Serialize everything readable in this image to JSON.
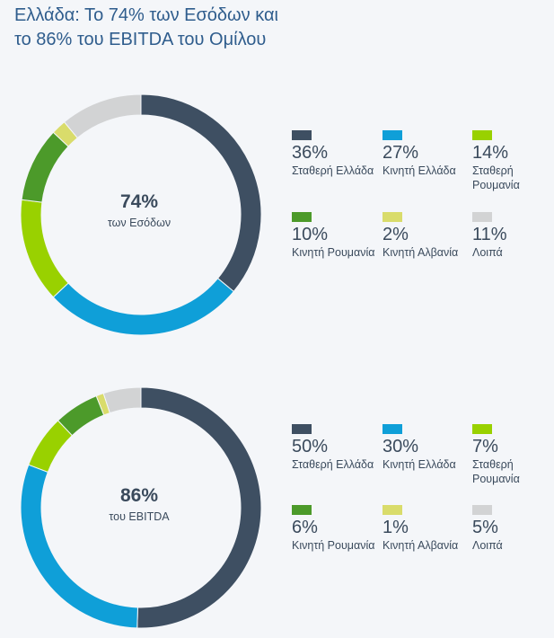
{
  "header": {
    "title_line1": "Ελλάδα: Το 74% των Εσόδων και",
    "title_line2": "το 86% του EBITDA του Ομίλου"
  },
  "colors": {
    "fixed_greece": "#3e4f62",
    "mobile_greece": "#0f9fd8",
    "fixed_romania": "#99d100",
    "mobile_romania": "#4c9a2a",
    "mobile_albania": "#d9dc6b",
    "other": "#d2d3d4"
  },
  "panels": [
    {
      "center_value": "74%",
      "center_label": "των Εσόδων",
      "legend": [
        {
          "value": "36%",
          "label": "Σταθερή Ελλάδα",
          "color": "#3e4f62"
        },
        {
          "value": "27%",
          "label": "Κινητή Ελλάδα",
          "color": "#0f9fd8"
        },
        {
          "value": "14%",
          "label": "Σταθερή Ρουμανία",
          "color": "#99d100"
        },
        {
          "value": "10%",
          "label": "Κινητή Ρουμανία",
          "color": "#4c9a2a"
        },
        {
          "value": "2%",
          "label": "Κινητή Αλβανία",
          "color": "#d9dc6b"
        },
        {
          "value": "11%",
          "label": "Λοιπά",
          "color": "#d2d3d4"
        }
      ]
    },
    {
      "center_value": "86%",
      "center_label": "του EBITDA",
      "legend": [
        {
          "value": "50%",
          "label": "Σταθερή Ελλάδα",
          "color": "#3e4f62"
        },
        {
          "value": "30%",
          "label": "Κινητή Ελλάδα",
          "color": "#0f9fd8"
        },
        {
          "value": "7%",
          "label": "Σταθερή Ρουμανία",
          "color": "#99d100"
        },
        {
          "value": "6%",
          "label": "Κινητή Ρουμανία",
          "color": "#4c9a2a"
        },
        {
          "value": "1%",
          "label": "Κινητή Αλβανία",
          "color": "#d9dc6b"
        },
        {
          "value": "5%",
          "label": "Λοιπά",
          "color": "#d2d3d4"
        }
      ]
    }
  ],
  "chart_data": [
    {
      "type": "pie",
      "categories": [
        "Σταθερή Ελλάδα",
        "Κινητή Ελλάδα",
        "Σταθερή Ρουμανία",
        "Κινητή Ρουμανία",
        "Κινητή Αλβανία",
        "Λοιπά"
      ],
      "values": [
        36,
        27,
        14,
        10,
        2,
        11
      ],
      "colors": [
        "#3e4f62",
        "#0f9fd8",
        "#99d100",
        "#4c9a2a",
        "#d9dc6b",
        "#d2d3d4"
      ],
      "legend_placement": "right"
    },
    {
      "type": "pie",
      "categories": [
        "Σταθερή Ελλάδα",
        "Κινητή Ελλάδα",
        "Σταθερή Ρουμανία",
        "Κινητή Ρουμανία",
        "Κινητή Αλβανία",
        "Λοιπά"
      ],
      "values": [
        50,
        30,
        7,
        6,
        1,
        5
      ],
      "colors": [
        "#3e4f62",
        "#0f9fd8",
        "#99d100",
        "#4c9a2a",
        "#d9dc6b",
        "#d2d3d4"
      ],
      "legend_placement": "right"
    }
  ]
}
